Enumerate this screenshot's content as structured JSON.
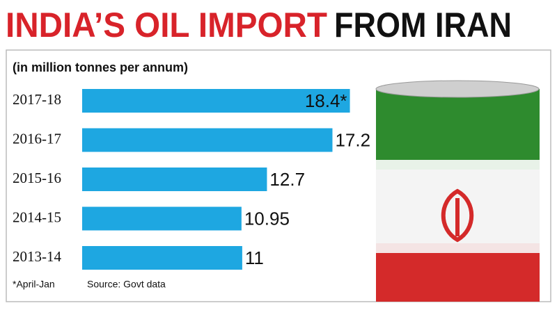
{
  "chart_data": {
    "type": "bar",
    "orientation": "horizontal",
    "title": [
      "INDIA’S OIL IMPORT",
      "FROM IRAN"
    ],
    "subtitle": "(in million tonnes per annum)",
    "categories": [
      "2017-18",
      "2016-17",
      "2015-16",
      "2014-15",
      "2013-14"
    ],
    "values": [
      18.4,
      17.2,
      12.7,
      10.95,
      11
    ],
    "value_labels": [
      "18.4*",
      "17.2",
      "12.7",
      "10.95",
      "11"
    ],
    "color": "#1ea7e1",
    "note": "*April-Jan",
    "source": "Source: Govt data"
  }
}
